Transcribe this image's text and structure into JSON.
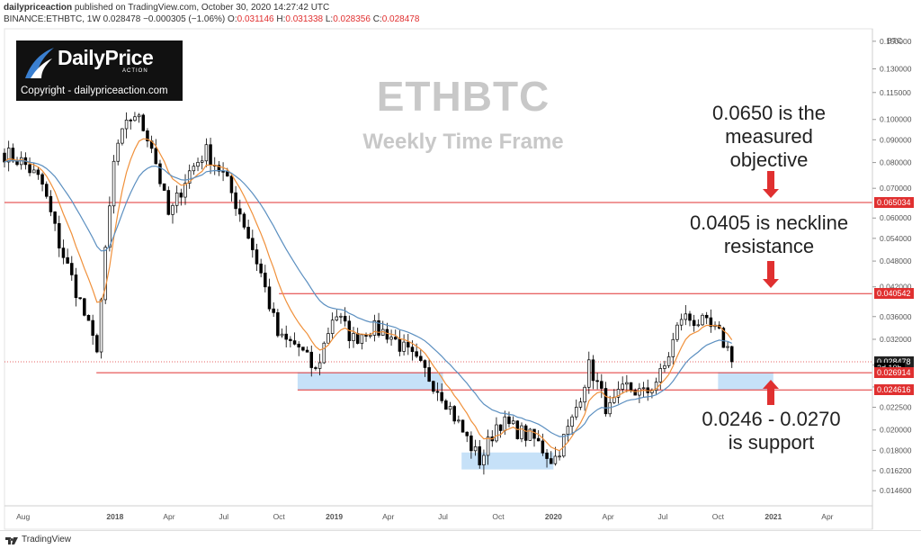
{
  "header": {
    "publisher": "dailypriceaction",
    "published_text": " published on TradingView.com, October 30, 2020 14:27:42 UTC",
    "symbol": "BINANCE:ETHBTC, 1W",
    "price": "0.028478",
    "change": "−0.000305 (−1.06%)",
    "o_label": "O:",
    "o_value": "0.031146",
    "h_label": "H:",
    "h_value": "0.031338",
    "l_label": "L:",
    "l_value": "0.028356",
    "c_label": "C:",
    "c_value": "0.028478"
  },
  "logo": {
    "brand": "DailyPrice",
    "tagline": "ACTION",
    "copyright": "Copyright - dailypriceaction.com"
  },
  "title": "ETHBTC",
  "subtitle": "Weekly Time Frame",
  "annotations": {
    "objective": "0.0650 is the\nmeasured\nobjective",
    "neckline": "0.0405 is neckline\nresistance",
    "support": "0.0246 - 0.0270\nis support"
  },
  "price_tags": {
    "objective": "0.065034",
    "neckline": "0.040542",
    "current": "0.028478",
    "countdown": "2d 10h",
    "support_top": "0.026914",
    "support_bottom": "0.024616"
  },
  "footer": {
    "brand": "TradingView"
  },
  "colors": {
    "up": "#ffffff",
    "down": "#000000",
    "ema_fast": "#f0903a",
    "ema_slow": "#5b8fc0",
    "level": "#e03030",
    "zone": "#bcdcf7"
  },
  "chart_data": {
    "type": "candlestick",
    "currency_label": "BTC",
    "scale": "log",
    "ylim": [
      0.0135,
      0.16
    ],
    "y_ticks": [
      "0.014600",
      "0.016200",
      "0.018000",
      "0.020000",
      "0.022500",
      "0.025000",
      "0.028000",
      "0.032000",
      "0.036000",
      "0.042000",
      "0.048000",
      "0.054000",
      "0.060000",
      "0.070000",
      "0.080000",
      "0.090000",
      "0.100000",
      "0.115000",
      "0.130000",
      "0.150000"
    ],
    "x_ticks": [
      "Aug",
      "2018",
      "Apr",
      "Jul",
      "Oct",
      "2019",
      "Apr",
      "Jul",
      "Oct",
      "2020",
      "Apr",
      "Jul",
      "Oct",
      "2021",
      "Apr"
    ],
    "levels": [
      {
        "name": "objective",
        "value": 0.065034
      },
      {
        "name": "neckline",
        "value": 0.040542
      },
      {
        "name": "support_top",
        "value": 0.026914
      },
      {
        "name": "support_bottom",
        "value": 0.024616
      }
    ],
    "current_price": 0.028478,
    "zones": [
      {
        "from": "2018-11",
        "to": "2019-07",
        "low": 0.0246,
        "high": 0.027
      },
      {
        "from": "2019-08",
        "to": "2020-01",
        "low": 0.0163,
        "high": 0.0178
      },
      {
        "from": "2020-10",
        "to": "2021-01",
        "low": 0.0246,
        "high": 0.027
      }
    ],
    "path": [
      [
        "2017-07",
        0.084
      ],
      [
        "2017-08",
        0.08
      ],
      [
        "2017-09",
        0.072
      ],
      [
        "2017-10",
        0.052
      ],
      [
        "2017-11",
        0.04
      ],
      [
        "2017-12",
        0.03
      ],
      [
        "2018-01",
        0.085
      ],
      [
        "2018-02",
        0.104
      ],
      [
        "2018-03",
        0.09
      ],
      [
        "2018-04",
        0.06
      ],
      [
        "2018-05",
        0.075
      ],
      [
        "2018-06",
        0.085
      ],
      [
        "2018-07",
        0.075
      ],
      [
        "2018-08",
        0.06
      ],
      [
        "2018-09",
        0.045
      ],
      [
        "2018-10",
        0.032
      ],
      [
        "2018-11",
        0.031
      ],
      [
        "2018-12",
        0.027
      ],
      [
        "2019-01",
        0.037
      ],
      [
        "2019-02",
        0.032
      ],
      [
        "2019-03",
        0.034
      ],
      [
        "2019-04",
        0.033
      ],
      [
        "2019-05",
        0.03
      ],
      [
        "2019-06",
        0.027
      ],
      [
        "2019-07",
        0.024
      ],
      [
        "2019-08",
        0.02
      ],
      [
        "2019-09",
        0.017
      ],
      [
        "2019-10",
        0.021
      ],
      [
        "2019-11",
        0.02
      ],
      [
        "2019-12",
        0.019
      ],
      [
        "2020-01",
        0.017
      ],
      [
        "2020-02",
        0.021
      ],
      [
        "2020-03",
        0.028
      ],
      [
        "2020-04",
        0.022
      ],
      [
        "2020-05",
        0.025
      ],
      [
        "2020-06",
        0.024
      ],
      [
        "2020-07",
        0.027
      ],
      [
        "2020-08",
        0.036
      ],
      [
        "2020-09",
        0.035
      ],
      [
        "2020-10",
        0.033
      ],
      [
        "2020-10-30",
        0.028478
      ]
    ]
  }
}
